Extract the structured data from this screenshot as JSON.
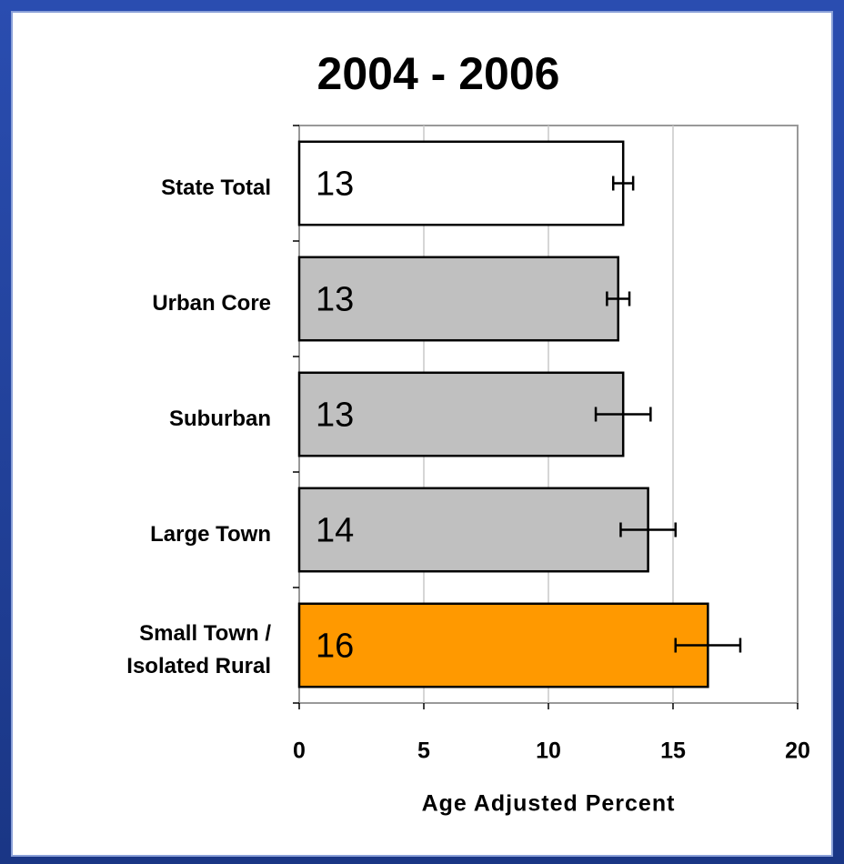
{
  "chart_data": {
    "type": "bar",
    "orientation": "horizontal",
    "title": "2004 - 2006",
    "xlabel": "Age Adjusted Percent",
    "categories": [
      "State Total",
      "Urban Core",
      "Suburban",
      "Large Town",
      "Small Town /\nIsolated Rural"
    ],
    "values": [
      13.0,
      12.8,
      13.0,
      14.0,
      16.4
    ],
    "value_labels": [
      "13",
      "13",
      "13",
      "14",
      "16"
    ],
    "errors": [
      0.4,
      0.45,
      1.1,
      1.1,
      1.3
    ],
    "colors": [
      "#ffffff",
      "#c0c0c0",
      "#c0c0c0",
      "#c0c0c0",
      "#ff9900"
    ],
    "xlim": [
      0,
      20
    ],
    "xticks": [
      0,
      5,
      10,
      15,
      20
    ],
    "grid": true
  }
}
